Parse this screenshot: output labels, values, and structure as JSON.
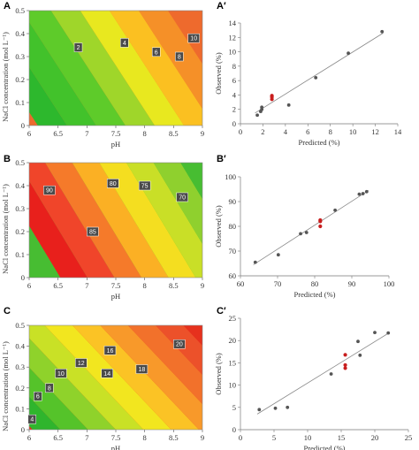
{
  "chart_data": [
    {
      "panel": "A",
      "type": "heatmap",
      "xlabel": "pH",
      "ylabel": "NaCl concentration (mol L⁻¹)",
      "xlim": [
        6,
        9
      ],
      "ylim": [
        0,
        0.5
      ],
      "xticks": [
        6,
        6.5,
        7,
        7.5,
        8,
        8.5,
        9
      ],
      "yticks": [
        0,
        0.1,
        0.2,
        0.3,
        0.4,
        0.5
      ],
      "grid": false,
      "contour_labels": [
        {
          "value": "2",
          "pH": 6.85,
          "nacl": 0.34
        },
        {
          "value": "4",
          "pH": 7.65,
          "nacl": 0.36
        },
        {
          "value": "6",
          "pH": 8.2,
          "nacl": 0.32
        },
        {
          "value": "8",
          "pH": 8.6,
          "nacl": 0.3
        },
        {
          "value": "10",
          "pH": 8.85,
          "nacl": 0.38
        }
      ],
      "band_colors": [
        "#2db82d",
        "#42c22b",
        "#5ecb2a",
        "#9fd62a",
        "#e8e81f",
        "#fbc021",
        "#f59028",
        "#ee6a2d"
      ]
    },
    {
      "panel": "A′",
      "type": "scatter",
      "xlabel": "Predicted (%)",
      "ylabel": "Observed (%)",
      "xlim": [
        0,
        14
      ],
      "ylim": [
        0,
        14
      ],
      "xticks": [
        0,
        2,
        4,
        6,
        8,
        10,
        12,
        14
      ],
      "yticks": [
        0,
        2,
        4,
        6,
        8,
        10,
        12,
        14
      ],
      "fit_line": [
        [
          1.3,
          1.5
        ],
        [
          12.7,
          12.6
        ]
      ],
      "points_grey": [
        [
          1.5,
          1.2
        ],
        [
          1.8,
          1.7
        ],
        [
          1.9,
          2.0
        ],
        [
          1.9,
          2.3
        ],
        [
          4.3,
          2.6
        ],
        [
          6.7,
          6.4
        ],
        [
          9.6,
          9.8
        ],
        [
          12.6,
          12.8
        ]
      ],
      "points_red": [
        [
          2.8,
          3.4
        ],
        [
          2.8,
          3.7
        ],
        [
          2.8,
          3.9
        ]
      ]
    },
    {
      "panel": "B",
      "type": "heatmap",
      "xlabel": "pH",
      "ylabel": "NaCl concentration (mol L⁻¹)",
      "xlim": [
        6,
        9
      ],
      "ylim": [
        0,
        0.5
      ],
      "xticks": [
        6,
        6.5,
        7,
        7.5,
        8,
        8.5,
        9
      ],
      "yticks": [
        0,
        0.1,
        0.2,
        0.3,
        0.4,
        0.5
      ],
      "grid": false,
      "contour_labels": [
        {
          "value": "90",
          "pH": 6.35,
          "nacl": 0.38
        },
        {
          "value": "85",
          "pH": 7.1,
          "nacl": 0.2
        },
        {
          "value": "80",
          "pH": 7.45,
          "nacl": 0.41
        },
        {
          "value": "75",
          "pH": 8.0,
          "nacl": 0.4
        },
        {
          "value": "70",
          "pH": 8.65,
          "nacl": 0.35
        }
      ],
      "band_colors": [
        "#e8201c",
        "#f0452a",
        "#f57a2a",
        "#fbb024",
        "#f4de20",
        "#c9df27",
        "#8fd02e",
        "#47bd32"
      ]
    },
    {
      "panel": "B′",
      "type": "scatter",
      "xlabel": "Predicted (%)",
      "ylabel": "Observed (%)",
      "xlim": [
        60,
        100
      ],
      "ylim": [
        60,
        100
      ],
      "xticks": [
        60,
        70,
        80,
        90,
        100
      ],
      "yticks": [
        60,
        70,
        80,
        90,
        100
      ],
      "fit_line": [
        [
          63.5,
          64.5
        ],
        [
          94.5,
          94.5
        ]
      ],
      "points_grey": [
        [
          64,
          65.5
        ],
        [
          70.2,
          68.5
        ],
        [
          76.2,
          77
        ],
        [
          77.8,
          77.5
        ],
        [
          85.5,
          86.5
        ],
        [
          92,
          93
        ],
        [
          93,
          93.2
        ],
        [
          94,
          94
        ]
      ],
      "points_red": [
        [
          81.5,
          80
        ],
        [
          81.5,
          82
        ],
        [
          81.5,
          82.5
        ]
      ]
    },
    {
      "panel": "C",
      "type": "heatmap",
      "xlabel": "pH",
      "ylabel": "NaCl concentration (mol L⁻¹)",
      "xlim": [
        6,
        9
      ],
      "ylim": [
        0,
        0.5
      ],
      "xticks": [
        6,
        6.5,
        7,
        7.5,
        8,
        8.5,
        9
      ],
      "yticks": [
        0,
        0.1,
        0.2,
        0.3,
        0.4,
        0.5
      ],
      "grid": false,
      "contour_labels": [
        {
          "value": "4",
          "pH": 6.05,
          "nacl": 0.05
        },
        {
          "value": "6",
          "pH": 6.15,
          "nacl": 0.16
        },
        {
          "value": "8",
          "pH": 6.35,
          "nacl": 0.2
        },
        {
          "value": "10",
          "pH": 6.55,
          "nacl": 0.27
        },
        {
          "value": "12",
          "pH": 6.9,
          "nacl": 0.32
        },
        {
          "value": "14",
          "pH": 7.35,
          "nacl": 0.27
        },
        {
          "value": "16",
          "pH": 7.4,
          "nacl": 0.38
        },
        {
          "value": "18",
          "pH": 7.95,
          "nacl": 0.29
        },
        {
          "value": "20",
          "pH": 8.6,
          "nacl": 0.41
        }
      ],
      "band_colors": [
        "#2fb52d",
        "#55c32a",
        "#8fd22b",
        "#c9e126",
        "#f2e61f",
        "#fbc325",
        "#f8992a",
        "#f2712b",
        "#ec512a",
        "#e6311d"
      ]
    },
    {
      "panel": "C′",
      "type": "scatter",
      "xlabel": "Predicted (%)",
      "ylabel": "Observed (%)",
      "xlim": [
        0,
        25
      ],
      "ylim": [
        0,
        25
      ],
      "xticks": [
        0,
        5,
        10,
        15,
        20,
        25
      ],
      "yticks": [
        0,
        5,
        10,
        15,
        20,
        25
      ],
      "fit_line": [
        [
          2.5,
          3.5
        ],
        [
          22.2,
          21.8
        ]
      ],
      "points_grey": [
        [
          2.8,
          4.5
        ],
        [
          5.2,
          4.8
        ],
        [
          7,
          5
        ],
        [
          13.5,
          12.5
        ],
        [
          17.5,
          19.8
        ],
        [
          17.8,
          16.7
        ],
        [
          20,
          21.8
        ],
        [
          22,
          21.7
        ]
      ],
      "points_red": [
        [
          15.6,
          13.8
        ],
        [
          15.6,
          14.5
        ],
        [
          15.6,
          16.8
        ]
      ]
    }
  ]
}
